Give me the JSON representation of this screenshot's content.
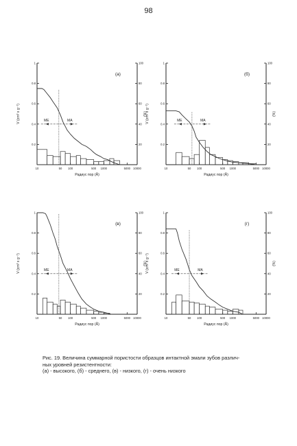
{
  "page_number": "98",
  "caption": {
    "line1": "Рис. 19. Величина суммарной пористости образцов интактной эмали зубов различ-",
    "line2": "ных уровней резистентности:",
    "line3": "(а) - высокого, (б) - среднего, (в) - низкого, (г) - очень низкого"
  },
  "chart_data": [
    {
      "type": "line",
      "panel_label": "(а)",
      "xlabel": "Радиус пор (Å)",
      "ylabel_left": "V (cm³ x g⁻¹)",
      "ylabel_right": "(%)",
      "x_scale": "log",
      "xlim": [
        10,
        10000
      ],
      "x_ticks": [
        "10",
        "50",
        "100",
        "500",
        "1000",
        "5000",
        "10000"
      ],
      "ylim_left": [
        0,
        1
      ],
      "y_ticks_left": [
        "0.2",
        "0.4",
        "0.6",
        "0.8",
        "1"
      ],
      "ylim_right": [
        0,
        100
      ],
      "y_ticks_right": [
        "20",
        "40",
        "60",
        "80",
        "100"
      ],
      "annotations": {
        "ME": "ME",
        "MA": "MA"
      },
      "median_x": 45,
      "cumulative_curve": {
        "x": [
          10,
          12,
          14,
          16,
          20,
          25,
          30,
          40,
          50,
          60,
          80,
          100,
          130,
          170,
          220,
          300,
          400,
          500,
          600,
          800,
          1000,
          1300,
          1700,
          2200,
          3000
        ],
        "y": [
          0.75,
          0.75,
          0.75,
          0.74,
          0.7,
          0.66,
          0.62,
          0.56,
          0.49,
          0.42,
          0.34,
          0.3,
          0.26,
          0.23,
          0.2,
          0.18,
          0.15,
          0.12,
          0.1,
          0.08,
          0.06,
          0.05,
          0.03,
          0.015,
          0.0
        ]
      },
      "histogram_percent": {
        "bins": [
          [
            10,
            20
          ],
          [
            20,
            30
          ],
          [
            30,
            50
          ],
          [
            50,
            70
          ],
          [
            70,
            100
          ],
          [
            100,
            150
          ],
          [
            150,
            200
          ],
          [
            200,
            300
          ],
          [
            300,
            500
          ],
          [
            500,
            700
          ],
          [
            700,
            1000
          ],
          [
            1000,
            1500
          ],
          [
            1500,
            2000
          ],
          [
            2000,
            3000
          ]
        ],
        "values": [
          15,
          9,
          8,
          13,
          11,
          8,
          9,
          6,
          5,
          3,
          3,
          4,
          6,
          4
        ]
      }
    },
    {
      "type": "line",
      "panel_label": "(б)",
      "xlabel": "Радиус пор (Å)",
      "ylabel_left": "V (cm³ x g⁻¹)",
      "ylabel_right": "(%)",
      "x_scale": "log",
      "xlim": [
        10,
        10000
      ],
      "x_ticks": [
        "10",
        "50",
        "100",
        "500",
        "1000",
        "5000",
        "10000"
      ],
      "ylim_left": [
        0,
        1
      ],
      "y_ticks_left": [
        "0.2",
        "0.4",
        "0.6",
        "0.8",
        "1"
      ],
      "ylim_right": [
        0,
        100
      ],
      "y_ticks_right": [
        "20",
        "40",
        "60",
        "80",
        "100"
      ],
      "annotations": {
        "ME": "ME",
        "MA": "MA"
      },
      "median_x": 60,
      "cumulative_curve": {
        "x": [
          10,
          15,
          20,
          25,
          30,
          40,
          50,
          60,
          70,
          80,
          100,
          130,
          170,
          220,
          300,
          400,
          500,
          700,
          1000,
          1500,
          2000,
          3000,
          4000,
          5000
        ],
        "y": [
          0.53,
          0.53,
          0.53,
          0.52,
          0.49,
          0.45,
          0.42,
          0.38,
          0.33,
          0.27,
          0.22,
          0.17,
          0.13,
          0.1,
          0.08,
          0.06,
          0.05,
          0.035,
          0.025,
          0.02,
          0.015,
          0.01,
          0.005,
          0.0
        ]
      },
      "histogram_percent": {
        "bins": [
          [
            20,
            30
          ],
          [
            30,
            50
          ],
          [
            50,
            70
          ],
          [
            70,
            100
          ],
          [
            100,
            150
          ],
          [
            150,
            200
          ],
          [
            200,
            300
          ],
          [
            300,
            500
          ],
          [
            500,
            700
          ],
          [
            700,
            1000
          ],
          [
            1000,
            1500
          ],
          [
            1500,
            2000
          ],
          [
            2000,
            3000
          ],
          [
            3000,
            5000
          ]
        ],
        "values": [
          12,
          8,
          6,
          10,
          24,
          17,
          10,
          7,
          5,
          4,
          3,
          2,
          2,
          1
        ]
      }
    },
    {
      "type": "line",
      "panel_label": "(в)",
      "xlabel": "Радиус пор (Å)",
      "ylabel_left": "V (cm³ x g⁻¹)",
      "ylabel_right": "(%)",
      "x_scale": "log",
      "xlim": [
        10,
        10000
      ],
      "x_ticks": [
        "10",
        "50",
        "100",
        "500",
        "1000",
        "5000",
        "10000"
      ],
      "ylim_left": [
        0,
        1
      ],
      "y_ticks_left": [
        "0.2",
        "0.4",
        "0.6",
        "0.8",
        "1"
      ],
      "ylim_right": [
        0,
        100
      ],
      "y_ticks_right": [
        "20",
        "40",
        "60",
        "80",
        "100"
      ],
      "annotations": {
        "ME": "ME",
        "MA": "MA"
      },
      "median_x": 45,
      "cumulative_curve": {
        "x": [
          10,
          12,
          15,
          18,
          20,
          25,
          30,
          35,
          40,
          50,
          60,
          80,
          100,
          130,
          170,
          220,
          300,
          400,
          500,
          700,
          1000,
          1300,
          1700
        ],
        "y": [
          1.0,
          1.0,
          1.0,
          0.99,
          0.96,
          0.88,
          0.8,
          0.74,
          0.67,
          0.58,
          0.5,
          0.42,
          0.35,
          0.28,
          0.21,
          0.15,
          0.1,
          0.07,
          0.05,
          0.03,
          0.02,
          0.01,
          0.0
        ]
      },
      "histogram_percent": {
        "bins": [
          [
            15,
            20
          ],
          [
            20,
            30
          ],
          [
            30,
            40
          ],
          [
            40,
            50
          ],
          [
            50,
            70
          ],
          [
            70,
            100
          ],
          [
            100,
            150
          ],
          [
            150,
            200
          ],
          [
            200,
            300
          ],
          [
            300,
            500
          ],
          [
            500,
            700
          ],
          [
            700,
            1000
          ],
          [
            1000,
            1500
          ]
        ],
        "values": [
          16,
          12,
          10,
          8,
          14,
          12,
          10,
          8,
          6,
          4,
          3,
          2,
          1
        ]
      }
    },
    {
      "type": "line",
      "panel_label": "(г)",
      "xlabel": "Радиус пор (Å)",
      "ylabel_left": "V (cm³ x g⁻¹)",
      "ylabel_right": "(%)",
      "x_scale": "log",
      "xlim": [
        10,
        10000
      ],
      "x_ticks": [
        "10",
        "50",
        "100",
        "500",
        "1000",
        "5000",
        "10000"
      ],
      "ylim_left": [
        0,
        1
      ],
      "y_ticks_left": [
        "0.2",
        "0.4",
        "0.6",
        "0.8",
        "1"
      ],
      "ylim_right": [
        0,
        100
      ],
      "y_ticks_right": [
        "20",
        "40",
        "60",
        "80",
        "100"
      ],
      "annotations": {
        "ME": "ME",
        "MA": "MA"
      },
      "median_x": 50,
      "cumulative_curve": {
        "x": [
          10,
          15,
          20,
          22,
          25,
          30,
          40,
          50,
          60,
          80,
          100,
          130,
          170,
          220,
          300,
          400,
          500,
          700,
          1000,
          1500,
          2000
        ],
        "y": [
          0.84,
          0.84,
          0.84,
          0.8,
          0.72,
          0.64,
          0.54,
          0.44,
          0.38,
          0.32,
          0.27,
          0.23,
          0.18,
          0.15,
          0.12,
          0.09,
          0.07,
          0.05,
          0.03,
          0.02,
          0.0
        ]
      },
      "histogram_percent": {
        "bins": [
          [
            15,
            20
          ],
          [
            20,
            30
          ],
          [
            30,
            50
          ],
          [
            50,
            70
          ],
          [
            70,
            100
          ],
          [
            100,
            150
          ],
          [
            150,
            200
          ],
          [
            200,
            300
          ],
          [
            300,
            500
          ],
          [
            500,
            700
          ],
          [
            700,
            1000
          ],
          [
            1000,
            1500
          ],
          [
            1500,
            2000
          ]
        ],
        "values": [
          12,
          19,
          13,
          12,
          11,
          10,
          8,
          7,
          5,
          4,
          3,
          5,
          4
        ]
      }
    }
  ]
}
